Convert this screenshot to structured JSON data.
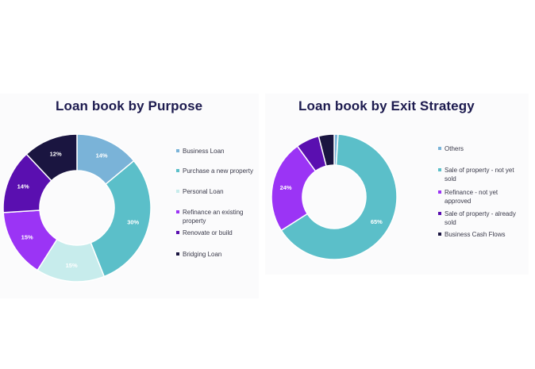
{
  "chart_data": [
    {
      "type": "pie",
      "title": "Loan book by Purpose",
      "legend_position": "right",
      "slices": [
        {
          "label": "Business Loan",
          "value": 14,
          "color": "#7ab3d8",
          "label_text": "14%"
        },
        {
          "label": "Purchase a new property",
          "value": 30,
          "color": "#5bbfc9",
          "label_text": "30%"
        },
        {
          "label": "Personal Loan",
          "value": 15,
          "color": "#c7ecec",
          "label_text": "15%"
        },
        {
          "label": "Refinance an existing\nproperty",
          "value": 15,
          "color": "#9b34f5",
          "label_text": "15%"
        },
        {
          "label": "Renovate or build",
          "value": 14,
          "color": "#5a0fb0",
          "label_text": "14%"
        },
        {
          "label": "Bridging Loan",
          "value": 12,
          "color": "#1a1540",
          "label_text": "12%"
        }
      ]
    },
    {
      "type": "pie",
      "title": "Loan book by Exit Strategy",
      "legend_position": "right",
      "slices": [
        {
          "label": "Others",
          "value": 1,
          "color": "#7ab3d8",
          "label_text": ""
        },
        {
          "label": "Sale of property - not yet\nsold",
          "value": 65,
          "color": "#5bbfc9",
          "label_text": "65%"
        },
        {
          "label": "Refinance - not yet\napproved",
          "value": 24,
          "color": "#9b34f5",
          "label_text": "24%"
        },
        {
          "label": "Sale of property - already\nsold",
          "value": 6,
          "color": "#5a0fb0",
          "label_text": ""
        },
        {
          "label": "Business Cash Flows",
          "value": 4,
          "color": "#1a1540",
          "label_text": ""
        }
      ]
    }
  ]
}
